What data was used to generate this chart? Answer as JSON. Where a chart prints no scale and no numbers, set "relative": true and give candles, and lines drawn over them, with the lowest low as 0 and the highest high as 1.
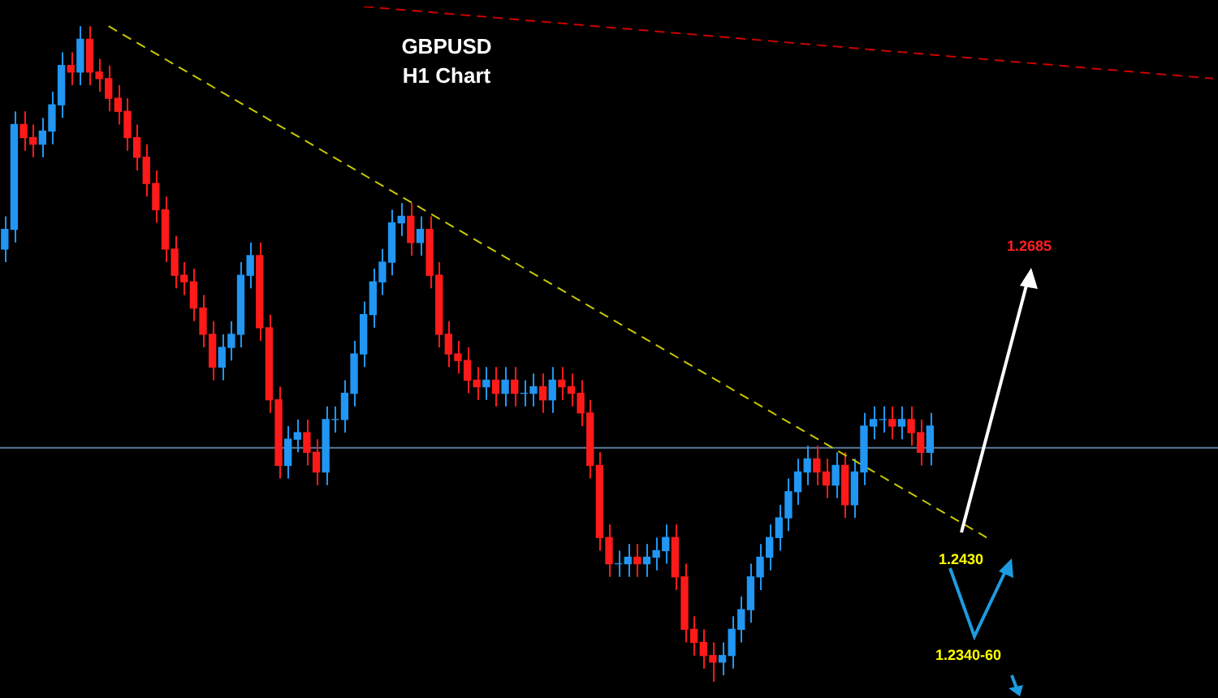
{
  "chart_data": {
    "type": "candlestick",
    "title": "GBPUSD",
    "subtitle": "H1 Chart",
    "relative": true,
    "categories": [
      null,
      null,
      null,
      null,
      null,
      null,
      null,
      null,
      null,
      null,
      null,
      null,
      null,
      null,
      null,
      null,
      null,
      null,
      null,
      null,
      null,
      null,
      null,
      null,
      null,
      null,
      null,
      null,
      null,
      null,
      null,
      null,
      null,
      null,
      null,
      null,
      null,
      null,
      null,
      null,
      null,
      null,
      null,
      null,
      null,
      null,
      null,
      null,
      null,
      null,
      null,
      null,
      null,
      null,
      null,
      null,
      null,
      null,
      null,
      null,
      null,
      null,
      null,
      null,
      null,
      null,
      null,
      null,
      null,
      null,
      null,
      null,
      null,
      null,
      null,
      null,
      null,
      null,
      null,
      null,
      null,
      null,
      null,
      null,
      null,
      null,
      null,
      null,
      null,
      null,
      null,
      null,
      null,
      null,
      null,
      null,
      null,
      null,
      null,
      null,
      null,
      null,
      null,
      null,
      null,
      null,
      null,
      null,
      null,
      null,
      null,
      null,
      null,
      null,
      null,
      null,
      null,
      null,
      null,
      null,
      null,
      null,
      null,
      null,
      null,
      null,
      null,
      null,
      null
    ],
    "ohlc": [
      [
        0.66,
        0.71,
        0.64,
        0.69
      ],
      [
        0.69,
        0.87,
        0.67,
        0.85
      ],
      [
        0.85,
        0.87,
        0.81,
        0.83
      ],
      [
        0.83,
        0.85,
        0.8,
        0.82
      ],
      [
        0.82,
        0.86,
        0.8,
        0.84
      ],
      [
        0.84,
        0.9,
        0.82,
        0.88
      ],
      [
        0.88,
        0.96,
        0.86,
        0.94
      ],
      [
        0.94,
        0.96,
        0.91,
        0.93
      ],
      [
        0.93,
        1.0,
        0.91,
        0.98
      ],
      [
        0.98,
        1.0,
        0.91,
        0.93
      ],
      [
        0.93,
        0.95,
        0.9,
        0.92
      ],
      [
        0.92,
        0.94,
        0.87,
        0.89
      ],
      [
        0.89,
        0.91,
        0.85,
        0.87
      ],
      [
        0.87,
        0.89,
        0.81,
        0.83
      ],
      [
        0.83,
        0.85,
        0.78,
        0.8
      ],
      [
        0.8,
        0.82,
        0.74,
        0.76
      ],
      [
        0.76,
        0.78,
        0.7,
        0.72
      ],
      [
        0.72,
        0.74,
        0.64,
        0.66
      ],
      [
        0.66,
        0.68,
        0.6,
        0.62
      ],
      [
        0.62,
        0.64,
        0.59,
        0.61
      ],
      [
        0.61,
        0.63,
        0.55,
        0.57
      ],
      [
        0.57,
        0.59,
        0.51,
        0.53
      ],
      [
        0.53,
        0.55,
        0.46,
        0.48
      ],
      [
        0.48,
        0.53,
        0.46,
        0.51
      ],
      [
        0.51,
        0.55,
        0.49,
        0.53
      ],
      [
        0.53,
        0.64,
        0.51,
        0.62
      ],
      [
        0.62,
        0.67,
        0.6,
        0.65
      ],
      [
        0.65,
        0.67,
        0.52,
        0.54
      ],
      [
        0.54,
        0.56,
        0.41,
        0.43
      ],
      [
        0.43,
        0.45,
        0.31,
        0.33
      ],
      [
        0.33,
        0.39,
        0.31,
        0.37
      ],
      [
        0.37,
        0.4,
        0.35,
        0.38
      ],
      [
        0.38,
        0.4,
        0.33,
        0.35
      ],
      [
        0.35,
        0.37,
        0.3,
        0.32
      ],
      [
        0.32,
        0.42,
        0.3,
        0.4
      ],
      [
        0.4,
        0.42,
        0.38,
        0.4
      ],
      [
        0.4,
        0.46,
        0.38,
        0.44
      ],
      [
        0.44,
        0.52,
        0.42,
        0.5
      ],
      [
        0.5,
        0.58,
        0.48,
        0.56
      ],
      [
        0.56,
        0.63,
        0.54,
        0.61
      ],
      [
        0.61,
        0.66,
        0.59,
        0.64
      ],
      [
        0.64,
        0.72,
        0.62,
        0.7
      ],
      [
        0.7,
        0.73,
        0.68,
        0.71
      ],
      [
        0.71,
        0.73,
        0.65,
        0.67
      ],
      [
        0.67,
        0.71,
        0.65,
        0.69
      ],
      [
        0.69,
        0.71,
        0.6,
        0.62
      ],
      [
        0.62,
        0.64,
        0.51,
        0.53
      ],
      [
        0.53,
        0.55,
        0.48,
        0.5
      ],
      [
        0.5,
        0.52,
        0.47,
        0.49
      ],
      [
        0.49,
        0.51,
        0.44,
        0.46
      ],
      [
        0.46,
        0.48,
        0.43,
        0.45
      ],
      [
        0.45,
        0.48,
        0.43,
        0.46
      ],
      [
        0.46,
        0.48,
        0.42,
        0.44
      ],
      [
        0.44,
        0.48,
        0.42,
        0.46
      ],
      [
        0.46,
        0.48,
        0.42,
        0.44
      ],
      [
        0.44,
        0.46,
        0.42,
        0.44
      ],
      [
        0.44,
        0.47,
        0.42,
        0.45
      ],
      [
        0.45,
        0.47,
        0.41,
        0.43
      ],
      [
        0.43,
        0.48,
        0.41,
        0.46
      ],
      [
        0.46,
        0.48,
        0.43,
        0.45
      ],
      [
        0.45,
        0.47,
        0.42,
        0.44
      ],
      [
        0.44,
        0.46,
        0.39,
        0.41
      ],
      [
        0.41,
        0.43,
        0.31,
        0.33
      ],
      [
        0.33,
        0.35,
        0.2,
        0.22
      ],
      [
        0.22,
        0.24,
        0.16,
        0.18
      ],
      [
        0.18,
        0.2,
        0.16,
        0.18
      ],
      [
        0.18,
        0.21,
        0.16,
        0.19
      ],
      [
        0.19,
        0.21,
        0.16,
        0.18
      ],
      [
        0.18,
        0.21,
        0.16,
        0.19
      ],
      [
        0.19,
        0.22,
        0.17,
        0.2
      ],
      [
        0.2,
        0.24,
        0.18,
        0.22
      ],
      [
        0.22,
        0.24,
        0.14,
        0.16
      ],
      [
        0.16,
        0.18,
        0.06,
        0.08
      ],
      [
        0.08,
        0.1,
        0.04,
        0.06
      ],
      [
        0.06,
        0.08,
        0.02,
        0.04
      ],
      [
        0.04,
        0.06,
        0.0,
        0.03
      ],
      [
        0.03,
        0.06,
        0.01,
        0.04
      ],
      [
        0.04,
        0.1,
        0.02,
        0.08
      ],
      [
        0.08,
        0.13,
        0.06,
        0.11
      ],
      [
        0.11,
        0.18,
        0.09,
        0.16
      ],
      [
        0.16,
        0.21,
        0.14,
        0.19
      ],
      [
        0.19,
        0.24,
        0.17,
        0.22
      ],
      [
        0.22,
        0.27,
        0.2,
        0.25
      ],
      [
        0.25,
        0.31,
        0.23,
        0.29
      ],
      [
        0.29,
        0.34,
        0.27,
        0.32
      ],
      [
        0.32,
        0.36,
        0.3,
        0.34
      ],
      [
        0.34,
        0.36,
        0.3,
        0.32
      ],
      [
        0.32,
        0.34,
        0.28,
        0.3
      ],
      [
        0.3,
        0.35,
        0.28,
        0.33
      ],
      [
        0.33,
        0.35,
        0.25,
        0.27
      ],
      [
        0.27,
        0.34,
        0.25,
        0.32
      ],
      [
        0.32,
        0.41,
        0.3,
        0.39
      ],
      [
        0.39,
        0.42,
        0.37,
        0.4
      ],
      [
        0.4,
        0.42,
        0.38,
        0.4
      ],
      [
        0.4,
        0.42,
        0.37,
        0.39
      ],
      [
        0.39,
        0.42,
        0.37,
        0.4
      ],
      [
        0.4,
        0.42,
        0.36,
        0.38
      ],
      [
        0.38,
        0.4,
        0.33,
        0.35
      ],
      [
        0.35,
        0.41,
        0.33,
        0.39
      ],
      null,
      null,
      null,
      null,
      null,
      null,
      null,
      null,
      null,
      null,
      null,
      null,
      null,
      null,
      null,
      null,
      null,
      null,
      null,
      null,
      null,
      null,
      null,
      null,
      null,
      null,
      null,
      null,
      null,
      null
    ],
    "colors": [
      "#2196f3",
      "#2196f3",
      "#ff1a1a",
      "#ff1a1a",
      "#2196f3",
      "#2196f3",
      "#2196f3",
      "#ff1a1a",
      "#2196f3",
      "#ff1a1a",
      "#ff1a1a",
      "#ff1a1a",
      "#ff1a1a",
      "#ff1a1a",
      "#ff1a1a",
      "#ff1a1a",
      "#ff1a1a",
      "#ff1a1a",
      "#ff1a1a",
      "#ff1a1a",
      "#ff1a1a",
      "#ff1a1a",
      "#ff1a1a",
      "#2196f3",
      "#2196f3",
      "#2196f3",
      "#2196f3",
      "#ff1a1a",
      "#ff1a1a",
      "#ff1a1a",
      "#2196f3",
      "#2196f3",
      "#ff1a1a",
      "#ff1a1a",
      "#2196f3",
      "#2196f3",
      "#2196f3",
      "#2196f3",
      "#2196f3",
      "#2196f3",
      "#2196f3",
      "#2196f3",
      "#2196f3",
      "#ff1a1a",
      "#2196f3",
      "#ff1a1a",
      "#ff1a1a",
      "#ff1a1a",
      "#ff1a1a",
      "#ff1a1a",
      "#ff1a1a",
      "#2196f3",
      "#ff1a1a",
      "#2196f3",
      "#ff1a1a",
      "#2196f3",
      "#2196f3",
      "#ff1a1a",
      "#2196f3",
      "#ff1a1a",
      "#ff1a1a",
      "#ff1a1a",
      "#ff1a1a",
      "#ff1a1a",
      "#ff1a1a",
      "#2196f3",
      "#2196f3",
      "#ff1a1a",
      "#2196f3",
      "#2196f3",
      "#2196f3",
      "#ff1a1a",
      "#ff1a1a",
      "#ff1a1a",
      "#ff1a1a",
      "#ff1a1a",
      "#2196f3",
      "#2196f3",
      "#2196f3",
      "#2196f3",
      "#2196f3",
      "#2196f3",
      "#2196f3",
      "#2196f3",
      "#2196f3",
      "#2196f3",
      "#ff1a1a",
      "#ff1a1a",
      "#2196f3",
      "#ff1a1a",
      "#2196f3",
      "#2196f3",
      "#2196f3",
      "#2196f3",
      "#ff1a1a",
      "#2196f3",
      "#ff1a1a",
      "#ff1a1a",
      "#2196f3",
      null,
      null,
      null,
      null,
      null,
      null,
      null,
      null,
      null,
      null,
      null,
      null,
      null,
      null,
      null,
      null,
      null,
      null,
      null,
      null,
      null,
      null,
      null,
      null,
      null,
      null,
      null,
      null,
      null,
      null
    ],
    "series": [
      {
        "type": "line",
        "color": "#c8c800",
        "line_style": "dashed",
        "values": [
          null,
          null,
          null,
          null,
          null,
          null,
          null,
          null,
          null,
          null,
          null,
          1.0,
          null,
          null,
          null,
          null,
          null,
          null,
          null,
          null,
          null,
          null,
          null,
          null,
          null,
          null,
          null,
          null,
          null,
          null,
          null,
          null,
          null,
          null,
          null,
          null,
          null,
          null,
          null,
          null,
          null,
          null,
          null,
          null,
          null,
          null,
          null,
          null,
          null,
          null,
          null,
          null,
          null,
          null,
          null,
          null,
          null,
          null,
          null,
          null,
          null,
          null,
          null,
          null,
          null,
          null,
          null,
          null,
          null,
          null,
          null,
          null,
          null,
          null,
          null,
          null,
          null,
          null,
          null,
          null,
          null,
          null,
          null,
          null,
          null,
          null,
          null,
          null,
          null,
          null,
          null,
          null,
          null,
          null,
          null,
          null,
          null,
          null,
          null,
          null,
          null,
          null,
          null,
          null,
          0.22,
          null,
          null,
          null,
          null,
          null,
          null,
          null,
          null,
          null,
          null,
          null,
          null,
          null,
          null,
          null,
          null,
          null,
          null,
          null,
          null,
          null,
          null,
          null,
          null
        ]
      },
      {
        "type": "line",
        "color": "#cc0000",
        "line_style": "dashed",
        "values": [
          null,
          null,
          null,
          null,
          null,
          null,
          null,
          null,
          null,
          null,
          null,
          null,
          null,
          null,
          null,
          null,
          null,
          null,
          null,
          null,
          null,
          null,
          null,
          null,
          null,
          null,
          null,
          null,
          null,
          null,
          null,
          null,
          null,
          null,
          null,
          null,
          null,
          null,
          1.03,
          null,
          null,
          null,
          null,
          null,
          null,
          null,
          null,
          null,
          null,
          null,
          null,
          null,
          null,
          null,
          null,
          null,
          null,
          null,
          null,
          null,
          null,
          null,
          null,
          null,
          null,
          null,
          null,
          null,
          null,
          null,
          null,
          null,
          null,
          null,
          null,
          null,
          null,
          null,
          null,
          null,
          null,
          null,
          null,
          null,
          null,
          null,
          null,
          null,
          null,
          null,
          null,
          null,
          null,
          null,
          null,
          null,
          null,
          null,
          null,
          null,
          null,
          null,
          null,
          null,
          null,
          null,
          null,
          null,
          null,
          null,
          null,
          null,
          null,
          null,
          null,
          null,
          null,
          null,
          null,
          null,
          null,
          null,
          null,
          null,
          null,
          null,
          null,
          null,
          0.92
        ]
      }
    ],
    "ref_lines": [
      {
        "axis": "y",
        "value": 0.357,
        "color": "#5a7a9a"
      }
    ],
    "annotations": [
      "1.2685",
      "1.2430",
      "1.2340-60"
    ]
  }
}
